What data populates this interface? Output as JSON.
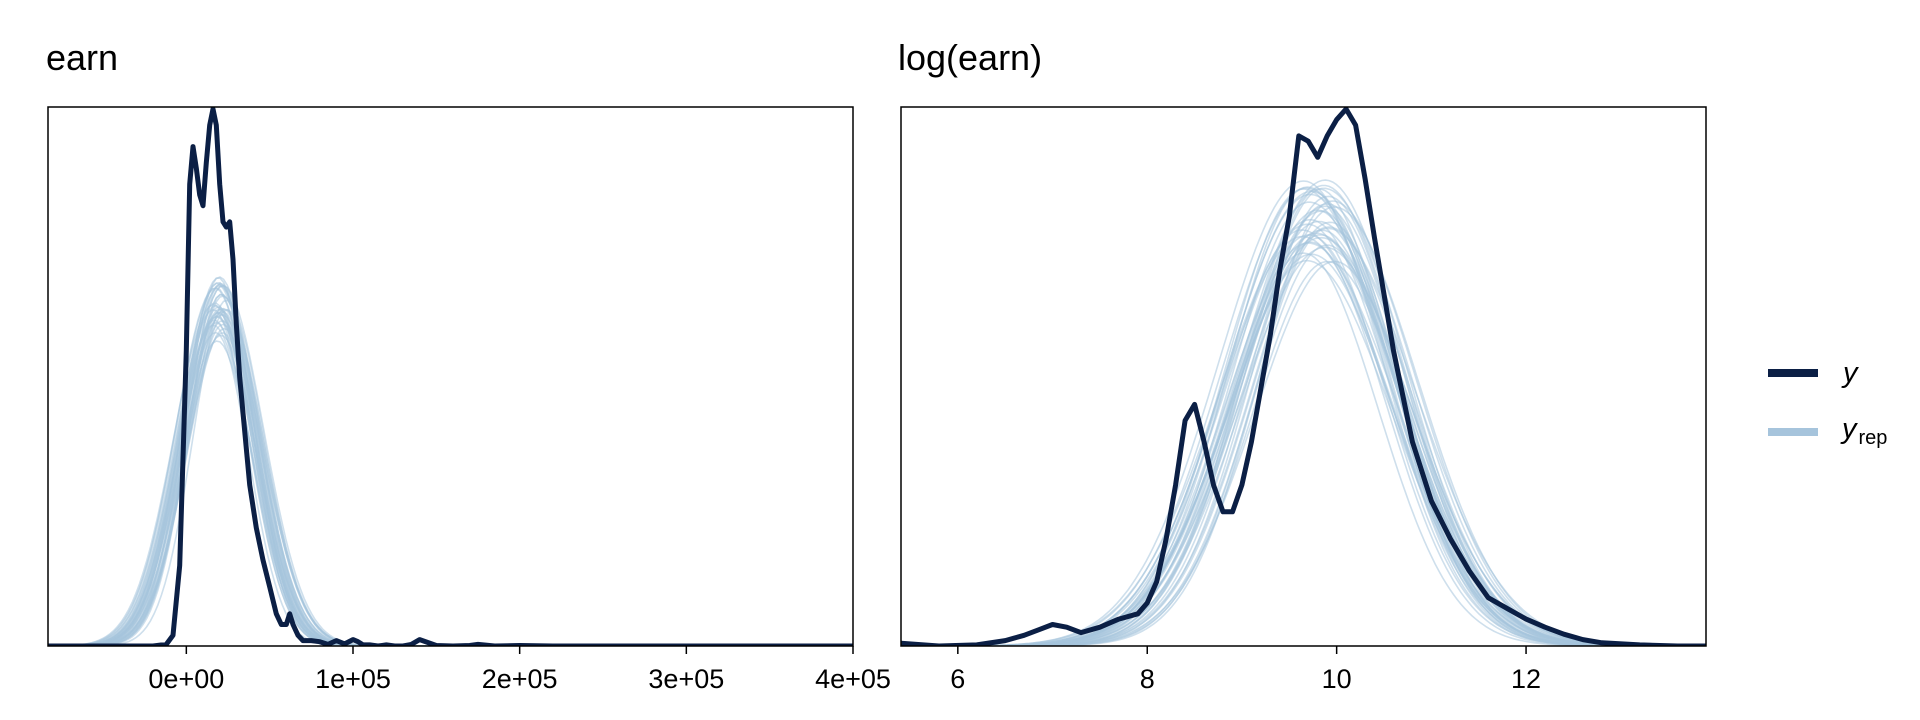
{
  "chart_data": [
    {
      "type": "density",
      "title": "earn",
      "xlim": [
        -83000,
        400000
      ],
      "ylim": [
        0,
        1
      ],
      "xticks": [
        0,
        100000,
        200000,
        300000,
        400000
      ],
      "xtick_labels": [
        "0e+00",
        "1e+05",
        "2e+05",
        "3e+05",
        "4e+05"
      ],
      "series": [
        {
          "name": "y",
          "color": "#0b1f45",
          "x": [
            -83000,
            -20000,
            -12000,
            -8000,
            -4000,
            0,
            2000,
            4000,
            6000,
            8000,
            10000,
            12000,
            14000,
            16000,
            18000,
            20000,
            22000,
            24000,
            26000,
            28000,
            30000,
            32000,
            35000,
            38000,
            42000,
            46000,
            50000,
            54000,
            57000,
            60000,
            62000,
            64000,
            67000,
            70000,
            75000,
            80000,
            85000,
            90000,
            95000,
            100000,
            103000,
            106000,
            110000,
            115000,
            120000,
            125000,
            130000,
            135000,
            140000,
            150000,
            160000,
            170000,
            175000,
            185000,
            200000,
            220000,
            250000,
            300000,
            350000,
            400000
          ],
          "y": [
            0,
            0,
            0.003,
            0.02,
            0.15,
            0.55,
            0.86,
            0.93,
            0.89,
            0.84,
            0.82,
            0.9,
            0.97,
            1.0,
            0.97,
            0.86,
            0.79,
            0.78,
            0.79,
            0.72,
            0.6,
            0.5,
            0.4,
            0.3,
            0.22,
            0.16,
            0.11,
            0.06,
            0.04,
            0.04,
            0.06,
            0.04,
            0.02,
            0.01,
            0.01,
            0.008,
            0.003,
            0.01,
            0.004,
            0.012,
            0.008,
            0.002,
            0.002,
            0.0,
            0.002,
            0.0,
            0.0,
            0.003,
            0.012,
            0.001,
            0.0,
            0.001,
            0.003,
            0.0,
            0.001,
            0.0,
            0.0,
            0.0,
            0.0,
            0.0
          ]
        }
      ],
      "yrep": {
        "name": "y_rep",
        "color": "#a6c4dc",
        "peak_x": 20000,
        "peak_y": 0.63,
        "left_sd": 22000,
        "right_sd": 22000,
        "draws": 40
      }
    },
    {
      "type": "density",
      "title": "log(earn)",
      "xlim": [
        5.4,
        13.9
      ],
      "ylim": [
        0,
        1
      ],
      "xticks": [
        6,
        8,
        10,
        12
      ],
      "xtick_labels": [
        "6",
        "8",
        "10",
        "12"
      ],
      "series": [
        {
          "name": "y",
          "color": "#0b1f45",
          "x": [
            5.4,
            5.8,
            6.2,
            6.5,
            6.7,
            6.85,
            7.0,
            7.15,
            7.3,
            7.5,
            7.7,
            7.9,
            8.0,
            8.1,
            8.2,
            8.3,
            8.4,
            8.5,
            8.6,
            8.7,
            8.8,
            8.9,
            9.0,
            9.1,
            9.2,
            9.3,
            9.4,
            9.5,
            9.6,
            9.7,
            9.8,
            9.9,
            10.0,
            10.1,
            10.2,
            10.3,
            10.4,
            10.6,
            10.8,
            11.0,
            11.2,
            11.4,
            11.6,
            11.8,
            12.0,
            12.2,
            12.4,
            12.6,
            12.8,
            13.2,
            13.6,
            13.9
          ],
          "y": [
            0.005,
            0.0,
            0.002,
            0.01,
            0.02,
            0.03,
            0.04,
            0.035,
            0.025,
            0.035,
            0.05,
            0.06,
            0.08,
            0.12,
            0.2,
            0.3,
            0.42,
            0.45,
            0.38,
            0.3,
            0.25,
            0.25,
            0.3,
            0.38,
            0.48,
            0.58,
            0.7,
            0.8,
            0.95,
            0.94,
            0.91,
            0.95,
            0.98,
            1.0,
            0.97,
            0.87,
            0.76,
            0.55,
            0.38,
            0.27,
            0.2,
            0.14,
            0.09,
            0.07,
            0.05,
            0.035,
            0.022,
            0.012,
            0.006,
            0.002,
            0.0,
            0.0
          ]
        }
      ],
      "yrep": {
        "name": "y_rep",
        "color": "#a6c4dc",
        "peak_x": 9.8,
        "peak_y": 0.79,
        "left_sd": 0.85,
        "right_sd": 0.85,
        "draws": 40
      }
    }
  ],
  "legend": {
    "y_label": "y",
    "yrep_label": "y",
    "yrep_subscript": "rep",
    "y_color": "#0b1f45",
    "yrep_color": "#a6c4dc"
  }
}
